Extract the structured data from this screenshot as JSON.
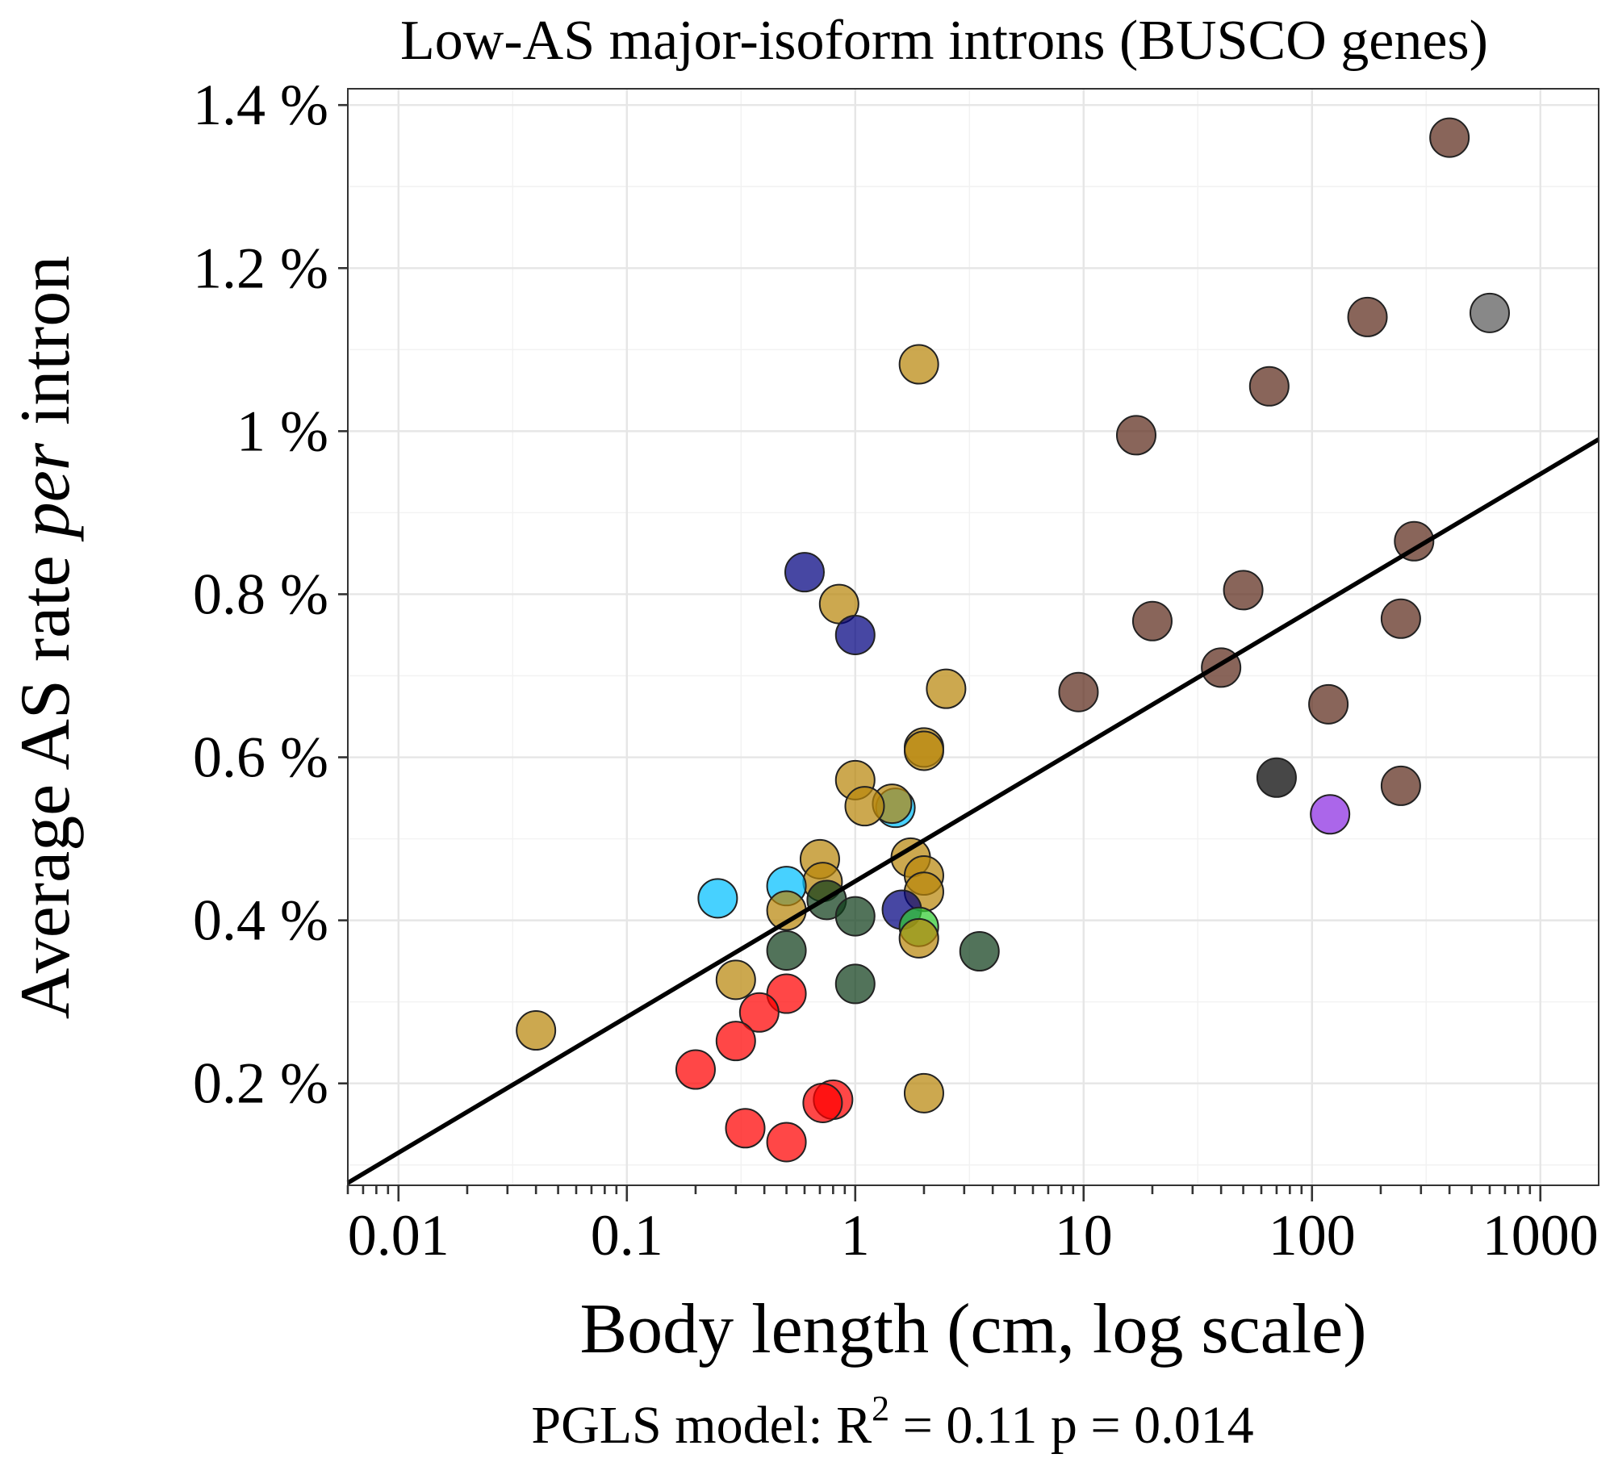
{
  "chart_data": {
    "type": "scatter",
    "title": "Low-AS major-isoform introns (BUSCO genes)",
    "xlabel": "Body length (cm, log scale)",
    "ylabel_prefix": "Average AS rate ",
    "ylabel_italic": "per",
    "ylabel_suffix": " intron",
    "x_scale": "log10",
    "xlim": [
      0.006,
      1800
    ],
    "ylim": [
      0.075,
      1.42
    ],
    "x_ticks": [
      {
        "value": 0.01,
        "label": "0.01"
      },
      {
        "value": 0.1,
        "label": "0.1"
      },
      {
        "value": 1,
        "label": "1"
      },
      {
        "value": 10,
        "label": "10"
      },
      {
        "value": 100,
        "label": "100"
      },
      {
        "value": 1000,
        "label": "1000"
      }
    ],
    "y_ticks": [
      {
        "value": 0.2,
        "label": "0.2 %"
      },
      {
        "value": 0.4,
        "label": "0.4 %"
      },
      {
        "value": 0.6,
        "label": "0.6 %"
      },
      {
        "value": 0.8,
        "label": "0.8 %"
      },
      {
        "value": 1.0,
        "label": "1 %"
      },
      {
        "value": 1.2,
        "label": "1.2 %"
      },
      {
        "value": 1.4,
        "label": "1.4 %"
      }
    ],
    "grid": true,
    "legend": "none",
    "regression_line": {
      "x": [
        0.006,
        1800
      ],
      "y": [
        0.078,
        0.99
      ]
    },
    "stats": {
      "prefix": "PGLS model: R",
      "superscript": "2",
      "r2_text": " = 0.11",
      "p_text": "p = 0.014"
    },
    "colors": {
      "brown": "#5c2a1a",
      "gold": "#b8860b",
      "red": "#ff0000",
      "darkgreen": "#0f3d1a",
      "navy": "#000080",
      "cyan": "#00bfff",
      "green": "#32cd32",
      "black": "#000000",
      "grey": "#5a5a5a",
      "purple": "#8a2be2"
    },
    "points": [
      {
        "x": 400,
        "y": 1.36,
        "color": "brown"
      },
      {
        "x": 175,
        "y": 1.14,
        "color": "brown"
      },
      {
        "x": 600,
        "y": 1.145,
        "color": "grey"
      },
      {
        "x": 65,
        "y": 1.055,
        "color": "brown"
      },
      {
        "x": 17,
        "y": 0.995,
        "color": "brown"
      },
      {
        "x": 280,
        "y": 0.865,
        "color": "brown"
      },
      {
        "x": 50,
        "y": 0.805,
        "color": "brown"
      },
      {
        "x": 20,
        "y": 0.767,
        "color": "brown"
      },
      {
        "x": 245,
        "y": 0.77,
        "color": "brown"
      },
      {
        "x": 40,
        "y": 0.71,
        "color": "brown"
      },
      {
        "x": 9.5,
        "y": 0.68,
        "color": "brown"
      },
      {
        "x": 118,
        "y": 0.665,
        "color": "brown"
      },
      {
        "x": 245,
        "y": 0.565,
        "color": "brown"
      },
      {
        "x": 70,
        "y": 0.575,
        "color": "black"
      },
      {
        "x": 120,
        "y": 0.53,
        "color": "purple"
      },
      {
        "x": 1.9,
        "y": 1.082,
        "color": "gold"
      },
      {
        "x": 0.6,
        "y": 0.827,
        "color": "navy"
      },
      {
        "x": 0.85,
        "y": 0.788,
        "color": "gold"
      },
      {
        "x": 1.0,
        "y": 0.75,
        "color": "navy"
      },
      {
        "x": 2.5,
        "y": 0.684,
        "color": "gold"
      },
      {
        "x": 2.0,
        "y": 0.612,
        "color": "gold"
      },
      {
        "x": 2.0,
        "y": 0.608,
        "color": "gold"
      },
      {
        "x": 1.0,
        "y": 0.572,
        "color": "gold"
      },
      {
        "x": 1.5,
        "y": 0.538,
        "color": "cyan"
      },
      {
        "x": 1.45,
        "y": 0.543,
        "color": "gold"
      },
      {
        "x": 1.1,
        "y": 0.54,
        "color": "gold"
      },
      {
        "x": 0.7,
        "y": 0.475,
        "color": "gold"
      },
      {
        "x": 1.75,
        "y": 0.477,
        "color": "gold"
      },
      {
        "x": 2.0,
        "y": 0.455,
        "color": "gold"
      },
      {
        "x": 0.72,
        "y": 0.447,
        "color": "gold"
      },
      {
        "x": 2.0,
        "y": 0.435,
        "color": "gold"
      },
      {
        "x": 0.5,
        "y": 0.442,
        "color": "cyan"
      },
      {
        "x": 0.25,
        "y": 0.427,
        "color": "cyan"
      },
      {
        "x": 0.75,
        "y": 0.425,
        "color": "darkgreen"
      },
      {
        "x": 1.6,
        "y": 0.413,
        "color": "navy"
      },
      {
        "x": 0.5,
        "y": 0.412,
        "color": "gold"
      },
      {
        "x": 1.0,
        "y": 0.405,
        "color": "darkgreen"
      },
      {
        "x": 1.9,
        "y": 0.392,
        "color": "green"
      },
      {
        "x": 1.9,
        "y": 0.378,
        "color": "gold"
      },
      {
        "x": 0.5,
        "y": 0.363,
        "color": "darkgreen"
      },
      {
        "x": 3.5,
        "y": 0.362,
        "color": "darkgreen"
      },
      {
        "x": 0.3,
        "y": 0.327,
        "color": "gold"
      },
      {
        "x": 1.0,
        "y": 0.322,
        "color": "darkgreen"
      },
      {
        "x": 0.5,
        "y": 0.31,
        "color": "red"
      },
      {
        "x": 0.38,
        "y": 0.287,
        "color": "red"
      },
      {
        "x": 0.3,
        "y": 0.252,
        "color": "red"
      },
      {
        "x": 0.04,
        "y": 0.265,
        "color": "gold"
      },
      {
        "x": 0.2,
        "y": 0.217,
        "color": "red"
      },
      {
        "x": 2.0,
        "y": 0.188,
        "color": "gold"
      },
      {
        "x": 0.8,
        "y": 0.18,
        "color": "red"
      },
      {
        "x": 0.72,
        "y": 0.176,
        "color": "red"
      },
      {
        "x": 0.33,
        "y": 0.145,
        "color": "red"
      },
      {
        "x": 0.5,
        "y": 0.128,
        "color": "red"
      }
    ]
  }
}
